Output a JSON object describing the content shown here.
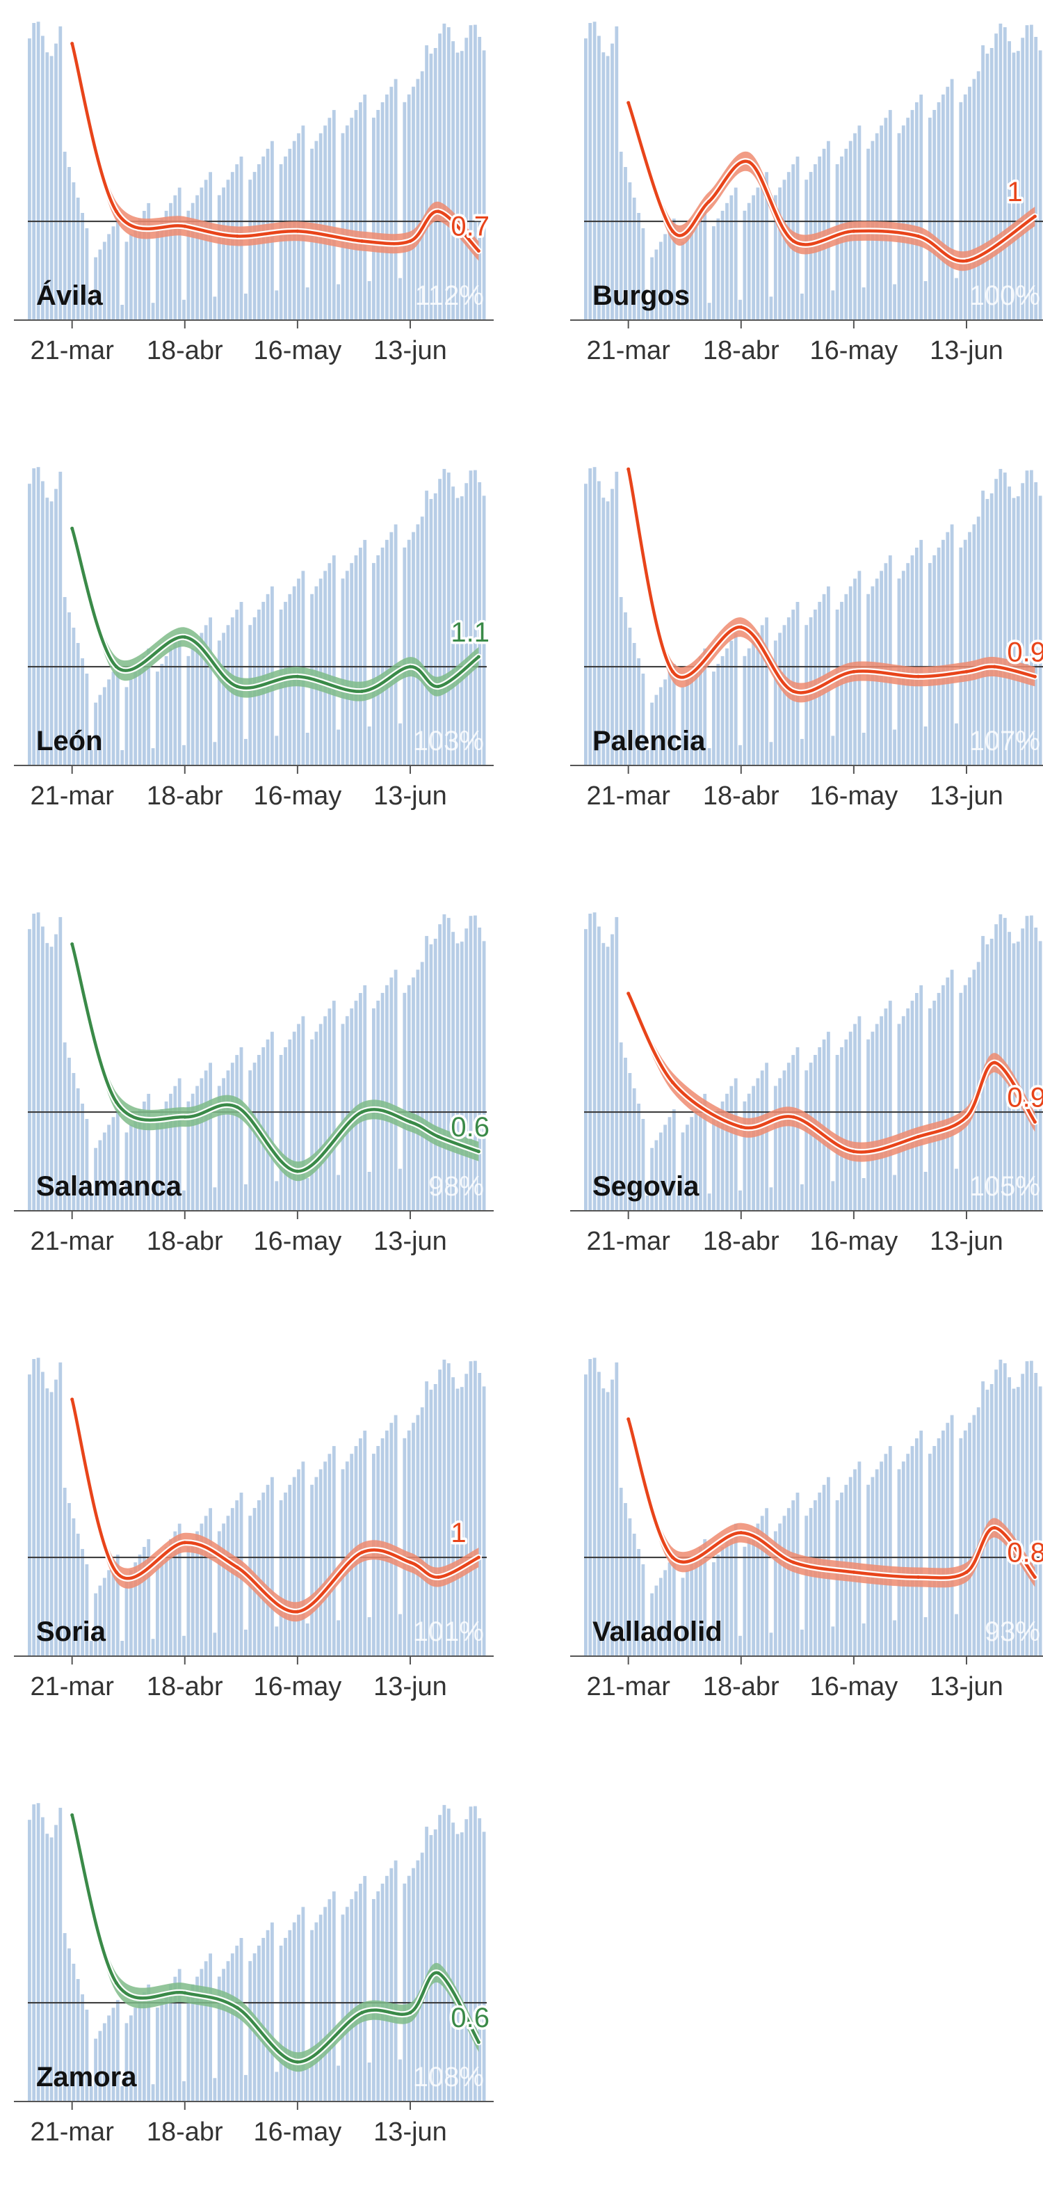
{
  "colors": {
    "bars": "#b7cde6",
    "above_one": "#e8441a",
    "above_one_band": "#ee8b70",
    "below_one": "#3a8a48",
    "below_one_band": "#7fbb88",
    "axis": "#555555",
    "reference_line": "#333333"
  },
  "chart_data": [
    {
      "type": "line",
      "name": "Ávila",
      "percent": "112%",
      "end_label": "0.7",
      "color_group": "above_one",
      "x": [
        "2020-03-21",
        "2020-04-01",
        "2020-04-18",
        "2020-05-01",
        "2020-05-16",
        "2020-06-01",
        "2020-06-13",
        "2020-06-20",
        "2020-06-30"
      ],
      "y": [
        2.8,
        1.1,
        0.95,
        0.85,
        0.9,
        0.8,
        0.8,
        1.1,
        0.7
      ],
      "x_ticks": [
        "21-mar",
        "18-abr",
        "16-may",
        "13-jun"
      ],
      "reference_y": 1
    },
    {
      "type": "line",
      "name": "Burgos",
      "percent": "100%",
      "end_label": "1",
      "color_group": "above_one",
      "x": [
        "2020-03-21",
        "2020-04-01",
        "2020-04-10",
        "2020-04-20",
        "2020-05-01",
        "2020-05-16",
        "2020-06-01",
        "2020-06-13",
        "2020-06-30"
      ],
      "y": [
        2.2,
        0.9,
        1.2,
        1.6,
        0.8,
        0.9,
        0.85,
        0.6,
        1.05
      ],
      "x_ticks": [
        "21-mar",
        "18-abr",
        "16-may",
        "13-jun"
      ],
      "reference_y": 1
    },
    {
      "type": "line",
      "name": "León",
      "percent": "103%",
      "end_label": "1.1",
      "color_group": "below_one",
      "x": [
        "2020-03-21",
        "2020-04-01",
        "2020-04-18",
        "2020-05-01",
        "2020-05-16",
        "2020-06-01",
        "2020-06-13",
        "2020-06-20",
        "2020-06-30"
      ],
      "y": [
        2.4,
        1.0,
        1.3,
        0.8,
        0.9,
        0.75,
        1.0,
        0.8,
        1.1
      ],
      "x_ticks": [
        "21-mar",
        "18-abr",
        "16-may",
        "13-jun"
      ],
      "reference_y": 1
    },
    {
      "type": "line",
      "name": "Palencia",
      "percent": "107%",
      "end_label": "0.9",
      "color_group": "above_one",
      "x": [
        "2020-03-21",
        "2020-04-01",
        "2020-04-18",
        "2020-05-01",
        "2020-05-16",
        "2020-06-01",
        "2020-06-13",
        "2020-06-20",
        "2020-06-30"
      ],
      "y": [
        3.0,
        0.95,
        1.4,
        0.75,
        0.95,
        0.9,
        0.95,
        1.0,
        0.9
      ],
      "x_ticks": [
        "21-mar",
        "18-abr",
        "16-may",
        "13-jun"
      ],
      "reference_y": 1
    },
    {
      "type": "line",
      "name": "Salamanca",
      "percent": "98%",
      "end_label": "0.6",
      "color_group": "below_one",
      "x": [
        "2020-03-21",
        "2020-04-01",
        "2020-04-18",
        "2020-05-01",
        "2020-05-16",
        "2020-06-01",
        "2020-06-13",
        "2020-06-20",
        "2020-06-30"
      ],
      "y": [
        2.7,
        1.1,
        0.95,
        1.05,
        0.4,
        1.0,
        0.9,
        0.75,
        0.6
      ],
      "x_ticks": [
        "21-mar",
        "18-abr",
        "16-may",
        "13-jun"
      ],
      "reference_y": 1
    },
    {
      "type": "line",
      "name": "Segovia",
      "percent": "105%",
      "end_label": "0.9",
      "color_group": "above_one",
      "x": [
        "2020-03-21",
        "2020-04-01",
        "2020-04-18",
        "2020-05-01",
        "2020-05-16",
        "2020-06-01",
        "2020-06-13",
        "2020-06-20",
        "2020-06-30"
      ],
      "y": [
        2.2,
        1.3,
        0.85,
        0.95,
        0.6,
        0.75,
        0.95,
        1.5,
        0.9
      ],
      "x_ticks": [
        "21-mar",
        "18-abr",
        "16-may",
        "13-jun"
      ],
      "reference_y": 1
    },
    {
      "type": "line",
      "name": "Soria",
      "percent": "101%",
      "end_label": "1",
      "color_group": "above_one",
      "x": [
        "2020-03-21",
        "2020-04-01",
        "2020-04-18",
        "2020-05-01",
        "2020-05-16",
        "2020-06-01",
        "2020-06-13",
        "2020-06-20",
        "2020-06-30"
      ],
      "y": [
        2.6,
        0.85,
        1.15,
        0.9,
        0.45,
        1.05,
        0.95,
        0.8,
        1.0
      ],
      "x_ticks": [
        "21-mar",
        "18-abr",
        "16-may",
        "13-jun"
      ],
      "reference_y": 1
    },
    {
      "type": "line",
      "name": "Valladolid",
      "percent": "93%",
      "end_label": "0.8",
      "color_group": "above_one",
      "x": [
        "2020-03-21",
        "2020-04-01",
        "2020-04-18",
        "2020-05-01",
        "2020-05-16",
        "2020-06-01",
        "2020-06-13",
        "2020-06-20",
        "2020-06-30"
      ],
      "y": [
        2.4,
        1.0,
        1.25,
        0.95,
        0.85,
        0.8,
        0.85,
        1.3,
        0.8
      ],
      "x_ticks": [
        "21-mar",
        "18-abr",
        "16-may",
        "13-jun"
      ],
      "reference_y": 1
    },
    {
      "type": "line",
      "name": "Zamora",
      "percent": "108%",
      "end_label": "0.6",
      "color_group": "below_one",
      "x": [
        "2020-03-21",
        "2020-04-01",
        "2020-04-18",
        "2020-05-01",
        "2020-05-16",
        "2020-06-01",
        "2020-06-13",
        "2020-06-20",
        "2020-06-30"
      ],
      "y": [
        2.9,
        1.2,
        1.1,
        0.95,
        0.4,
        0.9,
        0.9,
        1.3,
        0.6
      ],
      "x_ticks": [
        "21-mar",
        "18-abr",
        "16-may",
        "13-jun"
      ],
      "reference_y": 1
    }
  ]
}
